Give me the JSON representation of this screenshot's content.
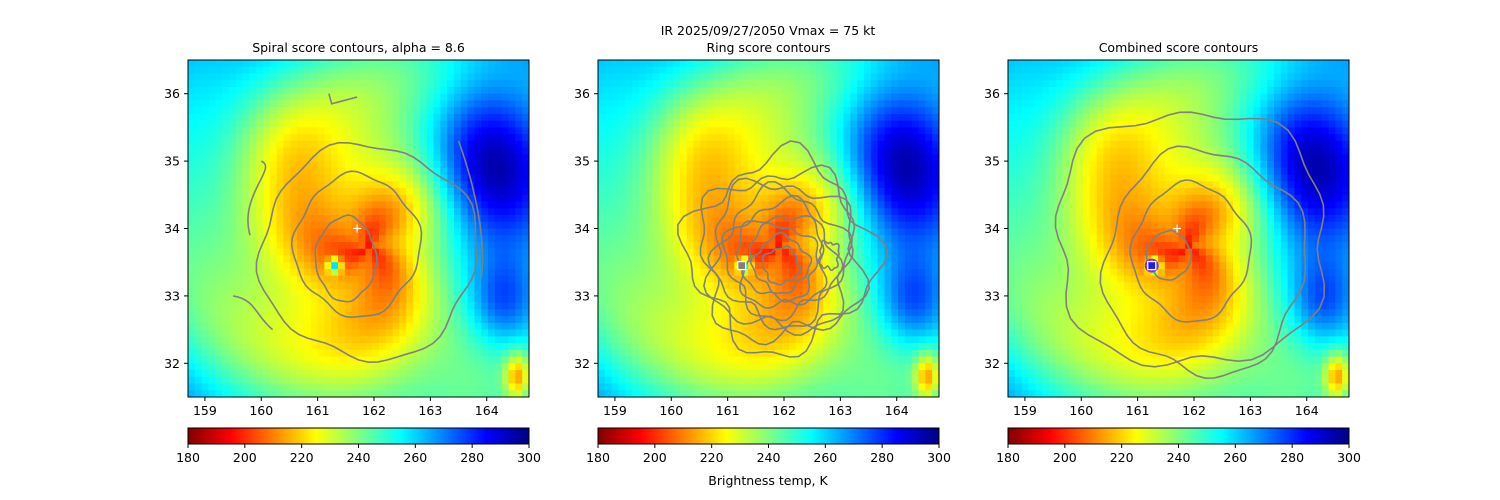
{
  "figure": {
    "suptitle_line1": "IR  2025/09/27/2050    Vmax = 75 kt",
    "colorbar_label": "Brightness temp, K"
  },
  "chart_data": [
    {
      "type": "heatmap",
      "title": "Spiral score contours, alpha =  8.6",
      "xlim": [
        158.7,
        164.75
      ],
      "ylim": [
        31.5,
        36.5
      ],
      "xticks": [
        159,
        160,
        161,
        162,
        163,
        164
      ],
      "yticks": [
        32,
        33,
        34,
        35,
        36
      ],
      "colormap": "jet_r",
      "value_range": [
        180,
        300
      ],
      "storm_center_lonlat": [
        161.7,
        34.0
      ],
      "eye_lonlat": [
        161.3,
        33.45
      ],
      "contour_color": "#808080"
    },
    {
      "type": "heatmap",
      "title": "Ring score contours",
      "xlim": [
        158.7,
        164.75
      ],
      "ylim": [
        31.5,
        36.5
      ],
      "xticks": [
        159,
        160,
        161,
        162,
        163,
        164
      ],
      "yticks": [
        32,
        33,
        34,
        35,
        36
      ],
      "colormap": "jet_r",
      "value_range": [
        180,
        300
      ],
      "ring_center_lonlat": [
        161.25,
        33.45
      ],
      "contour_color": "#808080"
    },
    {
      "type": "heatmap",
      "title": "Combined score contours",
      "xlim": [
        158.7,
        164.75
      ],
      "ylim": [
        31.5,
        36.5
      ],
      "xticks": [
        159,
        160,
        161,
        162,
        163,
        164
      ],
      "yticks": [
        32,
        33,
        34,
        35,
        36
      ],
      "colormap": "jet_r",
      "value_range": [
        180,
        300
      ],
      "storm_center_lonlat": [
        161.7,
        34.0
      ],
      "combined_center_lonlat": [
        161.25,
        33.45
      ],
      "contour_color": "#808080"
    }
  ],
  "colorbar": {
    "ticks": [
      180,
      200,
      220,
      240,
      260,
      280,
      300
    ],
    "range": [
      180,
      300
    ],
    "stops": [
      "#800000",
      "#ff0000",
      "#ff8000",
      "#ffff00",
      "#80ff80",
      "#00ffff",
      "#0080ff",
      "#0000ff",
      "#000080"
    ]
  }
}
